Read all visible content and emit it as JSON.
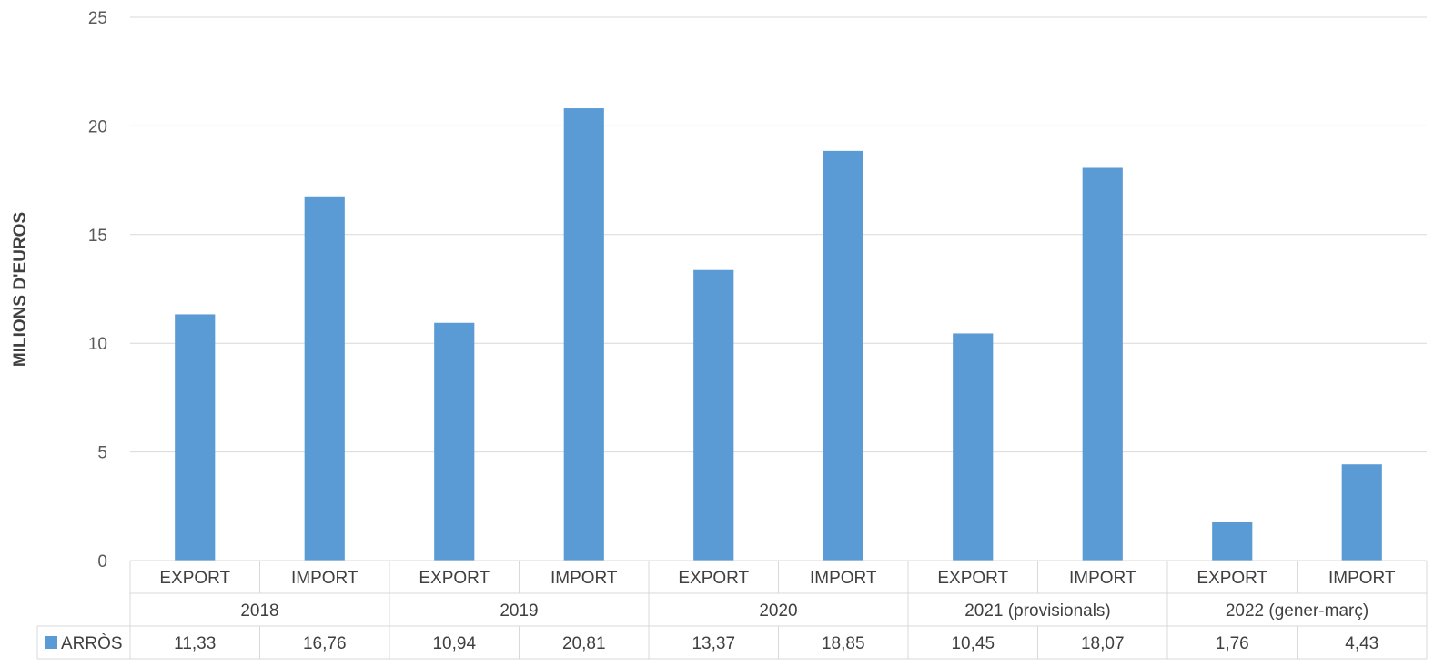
{
  "chart_data": {
    "type": "bar",
    "ylabel": "MILIONS D'EUROS",
    "ylim": [
      0,
      25
    ],
    "yticks": [
      "0",
      "5",
      "10",
      "15",
      "20",
      "25"
    ],
    "grid": true,
    "groups": [
      {
        "label": "2018",
        "categories": [
          "EXPORT",
          "IMPORT"
        ]
      },
      {
        "label": "2019",
        "categories": [
          "EXPORT",
          "IMPORT"
        ]
      },
      {
        "label": "2020",
        "categories": [
          "EXPORT",
          "IMPORT"
        ]
      },
      {
        "label": "2021 (provisionals)",
        "categories": [
          "EXPORT",
          "IMPORT"
        ]
      },
      {
        "label": "2022 (gener-març)",
        "categories": [
          "EXPORT",
          "IMPORT"
        ]
      }
    ],
    "series": [
      {
        "name": "ARRÒS",
        "color": "#5B9BD5",
        "values": [
          11.33,
          16.76,
          10.94,
          20.81,
          13.37,
          18.85,
          10.45,
          18.07,
          1.76,
          4.43
        ],
        "value_labels": [
          "11,33",
          "16,76",
          "10,94",
          "20,81",
          "13,37",
          "18,85",
          "10,45",
          "18,07",
          "1,76",
          "4,43"
        ]
      }
    ]
  }
}
